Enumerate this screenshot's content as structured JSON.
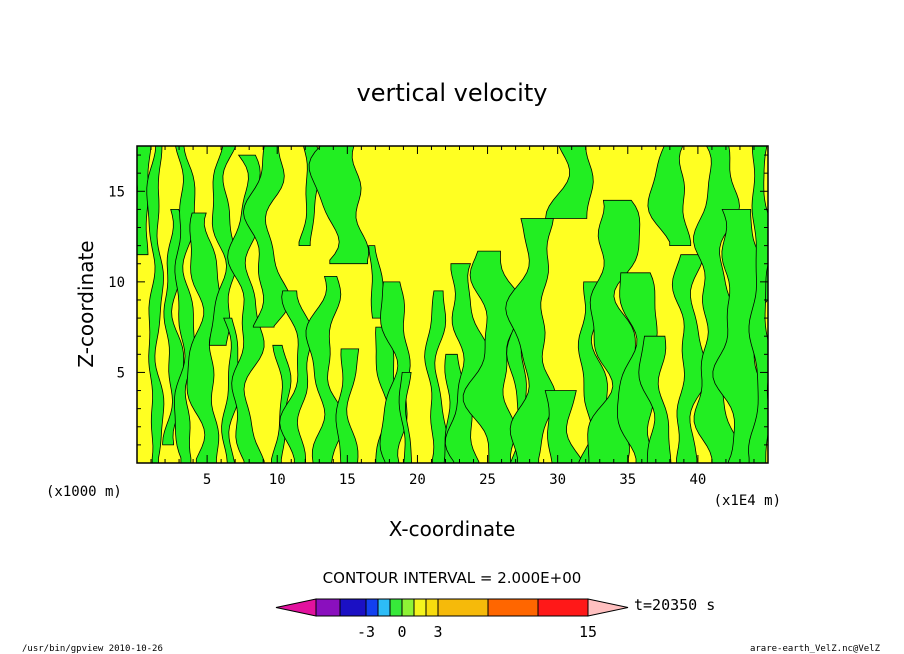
{
  "chart_data": {
    "type": "heatmap",
    "title": "vertical velocity",
    "xlabel": "X-coordinate",
    "ylabel": "Z-coordinate",
    "x_unit_left": "(x1000 m)",
    "x_unit_right": "(x1E4 m)",
    "xlim": [
      0,
      45
    ],
    "ylim": [
      0,
      17.5
    ],
    "x_ticks": [
      "5",
      "10",
      "15",
      "20",
      "25",
      "30",
      "35",
      "40"
    ],
    "x_tick_values": [
      5,
      10,
      15,
      20,
      25,
      30,
      35,
      40
    ],
    "y_ticks": [
      "5",
      "10",
      "15"
    ],
    "y_tick_values": [
      5,
      10,
      15
    ],
    "grid": false,
    "contour_interval_label": "CONTOUR INTERVAL = 2.000E+00",
    "time_label": "t=20350 s",
    "colorbar": {
      "bounds": [
        -10,
        -8,
        -6,
        -4,
        -3,
        -2,
        -1,
        0,
        1,
        2,
        3,
        6,
        9,
        12,
        15
      ],
      "labels": [
        "-3",
        "0",
        "3",
        "15"
      ],
      "label_values": [
        -3,
        0,
        3,
        15
      ],
      "colors": [
        "#e2129e",
        "#8a0fbe",
        "#1b10c4",
        "#1240f0",
        "#2dbcf6",
        "#37e93a",
        "#8ef336",
        "#f4f41e",
        "#f8dc0e",
        "#f6ba0a",
        "#ff6600",
        "#ff1818",
        "#ff7878",
        "#ffc0c0"
      ]
    },
    "field_colors": {
      "negative": "#22ee22",
      "positive": "#ffff22",
      "contour": "#000000"
    },
    "field_summary": "Field alternates between slightly negative (green, -2..0) and slightly positive (yellow, 0..2) vertical velocity in tall vertical bands across the domain."
  },
  "footer": {
    "left": "/usr/bin/gpview   2010-10-26",
    "right": "arare-earth_VelZ.nc@VelZ"
  }
}
